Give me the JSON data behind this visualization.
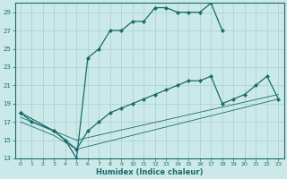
{
  "xlabel": "Humidex (Indice chaleur)",
  "bg_color": "#cce9e9",
  "grid_color": "#aad4d4",
  "line_color": "#1a6b6b",
  "xlim": [
    -0.5,
    23.5
  ],
  "ylim": [
    13,
    30
  ],
  "xticks": [
    0,
    1,
    2,
    3,
    4,
    5,
    6,
    7,
    8,
    9,
    10,
    11,
    12,
    13,
    14,
    15,
    16,
    17,
    18,
    19,
    20,
    21,
    22,
    23
  ],
  "yticks": [
    13,
    15,
    17,
    19,
    21,
    23,
    25,
    27,
    29
  ],
  "line1_x": [
    0,
    1,
    3,
    4,
    5,
    6,
    7,
    8,
    9,
    10,
    11,
    12,
    13,
    14,
    15,
    16,
    17,
    18
  ],
  "line1_y": [
    18,
    17,
    16,
    15,
    13,
    24,
    25,
    27,
    27,
    28,
    28,
    29.5,
    29.5,
    29,
    29,
    29,
    30,
    27
  ],
  "line2_x": [
    0,
    3,
    5,
    6,
    7,
    8,
    9,
    10,
    11,
    12,
    13,
    14,
    15,
    16,
    17,
    18,
    19,
    20,
    21,
    22,
    23
  ],
  "line2_y": [
    18,
    16,
    14,
    16,
    17,
    18,
    18.5,
    19,
    19.5,
    20,
    20.5,
    21,
    21.5,
    21.5,
    22,
    19,
    19.5,
    20,
    21,
    22,
    19.5
  ],
  "line3_x": [
    0,
    3,
    5,
    23
  ],
  "line3_y": [
    17,
    15.5,
    14,
    19.5
  ],
  "line4_x": [
    0,
    3,
    5,
    23
  ],
  "line4_y": [
    17.5,
    16,
    15,
    20
  ]
}
